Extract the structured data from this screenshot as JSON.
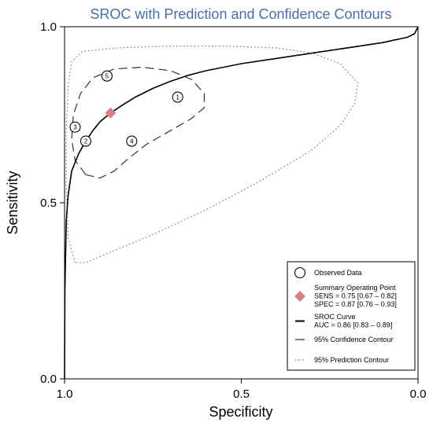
{
  "chart_data": {
    "type": "scatter",
    "title": "SROC with Prediction and Confidence Contours",
    "title_color": "#4a6fa5",
    "xlabel": "Specificity",
    "ylabel": "Sensitivity",
    "xlim": [
      1.0,
      0.0
    ],
    "ylim": [
      0.0,
      1.0
    ],
    "x_reversed": true,
    "xticks": [
      1.0,
      0.5,
      0.0
    ],
    "xtick_labels": [
      "1.0",
      "0.5",
      "0.0"
    ],
    "yticks": [
      0.0,
      0.5,
      1.0
    ],
    "ytick_labels": [
      "0.0",
      "0.5",
      "1.0"
    ],
    "grid": false,
    "observed_points": [
      {
        "label": "1",
        "specificity": 0.68,
        "sensitivity": 0.8
      },
      {
        "label": "2",
        "specificity": 0.94,
        "sensitivity": 0.675
      },
      {
        "label": "3",
        "specificity": 0.97,
        "sensitivity": 0.715
      },
      {
        "label": "4",
        "specificity": 0.81,
        "sensitivity": 0.675
      },
      {
        "label": "5",
        "specificity": 0.88,
        "sensitivity": 0.86
      }
    ],
    "summary_point": {
      "specificity": 0.87,
      "sensitivity": 0.755,
      "color": "#d98084"
    },
    "sroc_curve": {
      "points": [
        [
          1.0,
          0.0
        ],
        [
          0.999,
          0.25
        ],
        [
          0.995,
          0.45
        ],
        [
          0.99,
          0.52
        ],
        [
          0.98,
          0.59
        ],
        [
          0.96,
          0.64
        ],
        [
          0.94,
          0.675
        ],
        [
          0.92,
          0.705
        ],
        [
          0.9,
          0.73
        ],
        [
          0.87,
          0.755
        ],
        [
          0.84,
          0.775
        ],
        [
          0.8,
          0.8
        ],
        [
          0.75,
          0.825
        ],
        [
          0.7,
          0.845
        ],
        [
          0.65,
          0.862
        ],
        [
          0.6,
          0.875
        ],
        [
          0.5,
          0.895
        ],
        [
          0.4,
          0.91
        ],
        [
          0.3,
          0.925
        ],
        [
          0.2,
          0.94
        ],
        [
          0.1,
          0.955
        ],
        [
          0.03,
          0.97
        ],
        [
          0.01,
          0.98
        ],
        [
          0.0,
          1.0
        ]
      ]
    },
    "confidence_contour": {
      "points": [
        [
          0.94,
          0.58
        ],
        [
          0.97,
          0.62
        ],
        [
          0.98,
          0.68
        ],
        [
          0.975,
          0.75
        ],
        [
          0.955,
          0.81
        ],
        [
          0.92,
          0.855
        ],
        [
          0.86,
          0.88
        ],
        [
          0.78,
          0.885
        ],
        [
          0.7,
          0.875
        ],
        [
          0.64,
          0.85
        ],
        [
          0.605,
          0.81
        ],
        [
          0.605,
          0.77
        ],
        [
          0.64,
          0.74
        ],
        [
          0.7,
          0.705
        ],
        [
          0.77,
          0.665
        ],
        [
          0.82,
          0.625
        ],
        [
          0.86,
          0.59
        ],
        [
          0.9,
          0.57
        ],
        [
          0.94,
          0.58
        ]
      ]
    },
    "prediction_contour": {
      "points": [
        [
          0.97,
          0.33
        ],
        [
          0.99,
          0.4
        ],
        [
          0.995,
          0.55
        ],
        [
          0.995,
          0.7
        ],
        [
          0.99,
          0.83
        ],
        [
          0.98,
          0.9
        ],
        [
          0.95,
          0.93
        ],
        [
          0.85,
          0.94
        ],
        [
          0.7,
          0.945
        ],
        [
          0.55,
          0.945
        ],
        [
          0.4,
          0.94
        ],
        [
          0.3,
          0.925
        ],
        [
          0.22,
          0.895
        ],
        [
          0.17,
          0.84
        ],
        [
          0.18,
          0.78
        ],
        [
          0.22,
          0.72
        ],
        [
          0.3,
          0.65
        ],
        [
          0.45,
          0.56
        ],
        [
          0.6,
          0.48
        ],
        [
          0.75,
          0.41
        ],
        [
          0.87,
          0.36
        ],
        [
          0.94,
          0.33
        ],
        [
          0.97,
          0.33
        ]
      ]
    },
    "legend": {
      "placement": "bottom-right",
      "entries": [
        {
          "key": "observed",
          "lines": [
            "Observed Data"
          ]
        },
        {
          "key": "summary",
          "lines": [
            "Summary Operating Point",
            "SENS = 0.75 [0.67 – 0.82]",
            "SPEC = 0.87 [0.76 – 0.93]"
          ]
        },
        {
          "key": "sroc",
          "lines": [
            "SROC Curve",
            "AUC = 0.86 [0.83 – 0.89]"
          ]
        },
        {
          "key": "confidence",
          "lines": [
            "95% Confidence Contour"
          ]
        },
        {
          "key": "prediction",
          "lines": [
            "95% Prediction Contour"
          ]
        }
      ]
    }
  }
}
